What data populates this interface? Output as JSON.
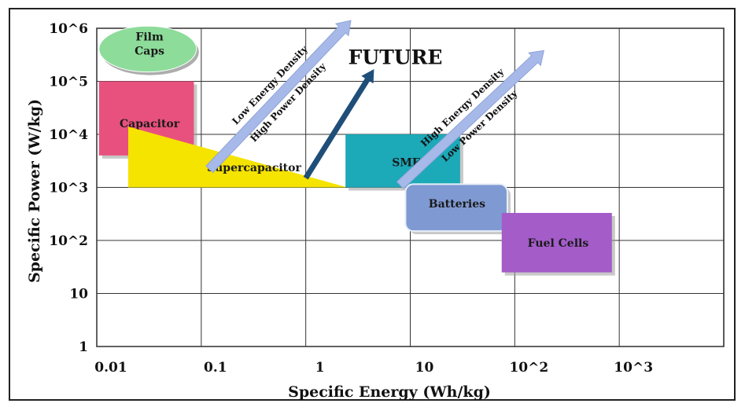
{
  "chart_data": {
    "type": "region-map",
    "xlabel": "Specific Energy (Wh/kg)",
    "ylabel": "Specific Power (W/kg)",
    "x_scale": "log",
    "y_scale": "log",
    "xlim": [
      0.01,
      10000
    ],
    "ylim": [
      1,
      1000000
    ],
    "grid": true,
    "x_ticks": [
      {
        "value": 0.01,
        "label": "0.01"
      },
      {
        "value": 0.1,
        "label": "0.1"
      },
      {
        "value": 1,
        "label": "1"
      },
      {
        "value": 10,
        "label": "10"
      },
      {
        "value": 100,
        "label": "10^2"
      },
      {
        "value": 1000,
        "label": "10^3"
      }
    ],
    "y_ticks": [
      {
        "value": 1,
        "label": "1"
      },
      {
        "value": 10,
        "label": "10"
      },
      {
        "value": 100,
        "label": "10^2"
      },
      {
        "value": 1000,
        "label": "10^3"
      },
      {
        "value": 10000,
        "label": "10^4"
      },
      {
        "value": 100000,
        "label": "10^5"
      },
      {
        "value": 1000000,
        "label": "10^6"
      }
    ],
    "regions": [
      {
        "name": "Capacitor",
        "label": "Capacitor",
        "shape": "rect",
        "x": [
          0.0105,
          0.085
        ],
        "y": [
          4000,
          100000
        ],
        "color": "#e8517d",
        "text_at": [
          0.032,
          16000
        ]
      },
      {
        "name": "Film Caps",
        "label_lines": [
          "Film",
          "Caps"
        ],
        "shape": "ellipse",
        "x": [
          0.0105,
          0.09
        ],
        "y": [
          150000,
          1100000
        ],
        "color": "#8ddc9a",
        "text_at": [
          0.032,
          450000
        ]
      },
      {
        "name": "Supercapacitor",
        "label": "Supercapacitor",
        "shape": "triangle",
        "points": [
          [
            0.02,
            14000
          ],
          [
            0.02,
            1000
          ],
          [
            2.5,
            1000
          ]
        ],
        "color": "#f5e300",
        "text_at": [
          0.32,
          2400
        ]
      },
      {
        "name": "SMES",
        "label": "SMES",
        "shape": "rect",
        "x": [
          2.4,
          30
        ],
        "y": [
          1000,
          10000
        ],
        "color": "#1ca9b8",
        "text_at": [
          10,
          3000
        ]
      },
      {
        "name": "Batteries",
        "label": "Batteries",
        "shape": "rounded-rect",
        "x": [
          9,
          85
        ],
        "y": [
          150,
          1150
        ],
        "color": "#7f9ad2",
        "text_at": [
          28,
          500
        ]
      },
      {
        "name": "Fuel Cells",
        "label": "Fuel Cells",
        "shape": "rect",
        "x": [
          75,
          850
        ],
        "y": [
          25,
          330
        ],
        "color": "#a45cc9",
        "text_at": [
          260,
          90
        ]
      }
    ],
    "arrows": [
      {
        "name": "future",
        "from": [
          1,
          1500
        ],
        "to": [
          4.5,
          170000
        ],
        "color": "#1f4e79",
        "label": "FUTURE",
        "label_at": [
          1,
          300000
        ]
      },
      {
        "name": "capacitor-to-up",
        "from": [
          0.12,
          2200
        ],
        "to": [
          2.7,
          1400000
        ],
        "color": "#a7b9e8",
        "labels": [
          "Low Energy Density",
          "High Power Density"
        ]
      },
      {
        "name": "battery-to-up",
        "from": [
          8,
          1100
        ],
        "to": [
          190,
          380000
        ],
        "color": "#a7b9e8",
        "labels": [
          "High Energy Density",
          "Low Power Density"
        ]
      }
    ]
  }
}
